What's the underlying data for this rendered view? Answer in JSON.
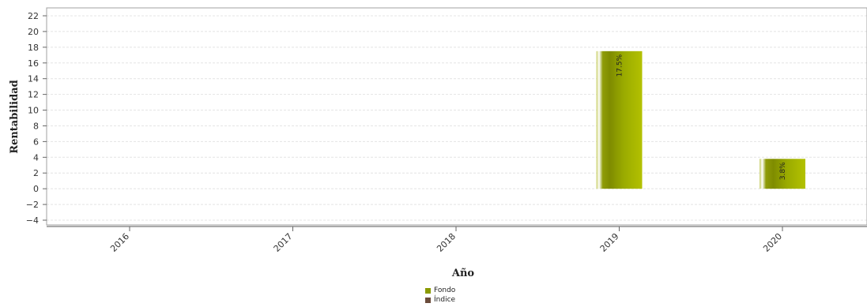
{
  "chart_data": {
    "type": "bar",
    "categories": [
      "2016",
      "2017",
      "2018",
      "2019",
      "2020"
    ],
    "series": [
      {
        "name": "Fondo",
        "values": [
          null,
          null,
          null,
          17.5,
          3.8
        ],
        "labels": [
          "",
          "",
          "",
          "17.5%",
          "3.8%"
        ],
        "color": "#8a9a00"
      },
      {
        "name": "Índice",
        "values": [
          null,
          null,
          null,
          null,
          null
        ],
        "labels": [
          "",
          "",
          "",
          "",
          ""
        ],
        "color": "#6b4c3b"
      }
    ],
    "xlabel": "Año",
    "ylabel": "Rentabilidad",
    "ylim": [
      -4,
      22
    ],
    "yticks": [
      -4,
      -2,
      0,
      2,
      4,
      6,
      8,
      10,
      12,
      14,
      16,
      18,
      20,
      22
    ],
    "ytick_labels": [
      "−4",
      "−2",
      "0",
      "2",
      "4",
      "6",
      "8",
      "10",
      "12",
      "14",
      "16",
      "18",
      "20",
      "22"
    ],
    "grid": true,
    "legend_position": "bottom-center"
  }
}
